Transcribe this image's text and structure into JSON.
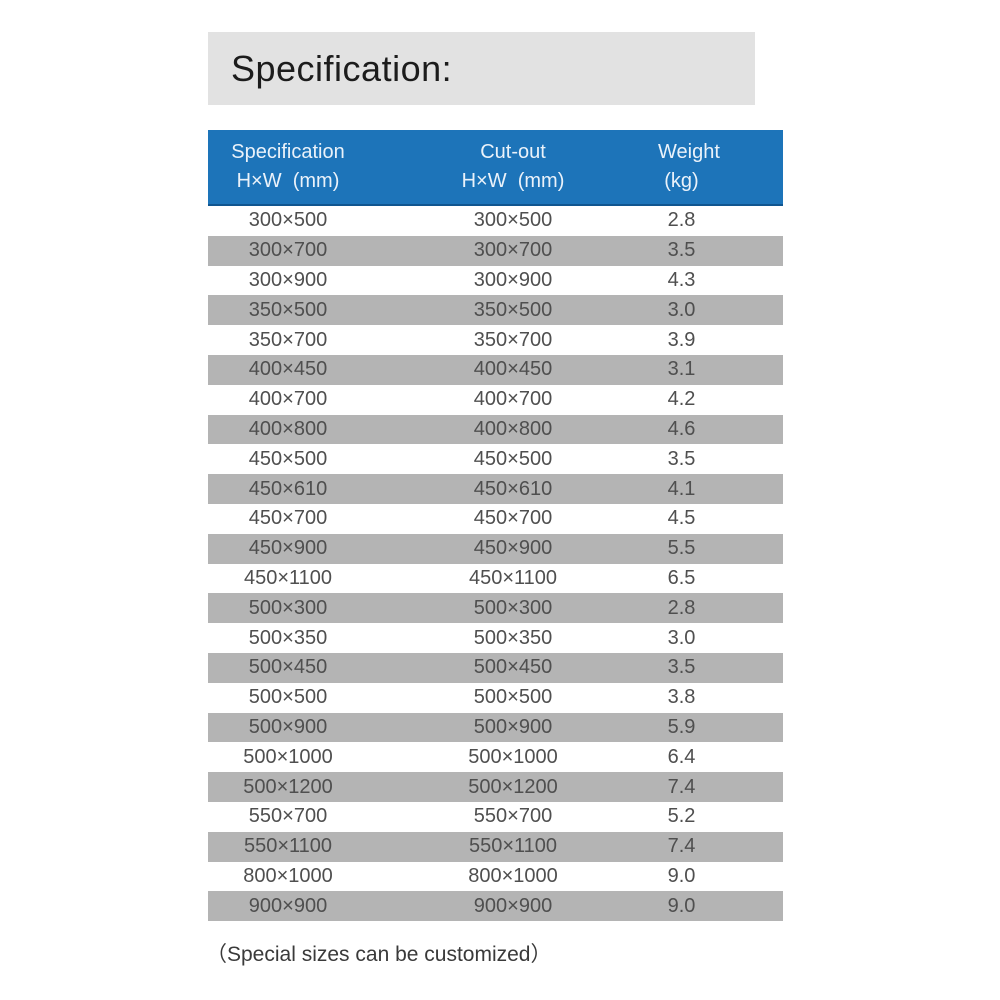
{
  "colors": {
    "title_bar_bg": "#e2e2e2",
    "header_bg": "#1d74b9",
    "header_border_bottom": "#10558f",
    "header_text": "#eaf2fa",
    "row_alt_bg": "#b4b4b4",
    "row_white_bg": "#ffffff",
    "row_text": "#4f4f4f",
    "title_text": "#1c1c1c"
  },
  "title_bar": {
    "text": "Specification:"
  },
  "table": {
    "header": {
      "columns": [
        {
          "line1": "Specification",
          "line2": "H×W  (mm)"
        },
        {
          "line1": "Cut-out",
          "line2": "H×W  (mm)"
        },
        {
          "line1": "Weight",
          "line2": "(kg)"
        }
      ]
    },
    "rows": [
      {
        "spec": "300×500",
        "cutout": "300×500",
        "weight": "2.8"
      },
      {
        "spec": "300×700",
        "cutout": "300×700",
        "weight": "3.5"
      },
      {
        "spec": "300×900",
        "cutout": "300×900",
        "weight": "4.3"
      },
      {
        "spec": "350×500",
        "cutout": "350×500",
        "weight": "3.0"
      },
      {
        "spec": "350×700",
        "cutout": "350×700",
        "weight": "3.9"
      },
      {
        "spec": "400×450",
        "cutout": "400×450",
        "weight": "3.1"
      },
      {
        "spec": "400×700",
        "cutout": "400×700",
        "weight": "4.2"
      },
      {
        "spec": "400×800",
        "cutout": "400×800",
        "weight": "4.6"
      },
      {
        "spec": "450×500",
        "cutout": "450×500",
        "weight": "3.5"
      },
      {
        "spec": "450×610",
        "cutout": "450×610",
        "weight": "4.1"
      },
      {
        "spec": "450×700",
        "cutout": "450×700",
        "weight": "4.5"
      },
      {
        "spec": "450×900",
        "cutout": "450×900",
        "weight": "5.5"
      },
      {
        "spec": "450×1100",
        "cutout": "450×1100",
        "weight": "6.5"
      },
      {
        "spec": "500×300",
        "cutout": "500×300",
        "weight": "2.8"
      },
      {
        "spec": "500×350",
        "cutout": "500×350",
        "weight": "3.0"
      },
      {
        "spec": "500×450",
        "cutout": "500×450",
        "weight": "3.5"
      },
      {
        "spec": "500×500",
        "cutout": "500×500",
        "weight": "3.8"
      },
      {
        "spec": "500×900",
        "cutout": "500×900",
        "weight": "5.9"
      },
      {
        "spec": "500×1000",
        "cutout": "500×1000",
        "weight": "6.4"
      },
      {
        "spec": "500×1200",
        "cutout": "500×1200",
        "weight": "7.4"
      },
      {
        "spec": "550×700",
        "cutout": "550×700",
        "weight": "5.2"
      },
      {
        "spec": "550×1100",
        "cutout": "550×1100",
        "weight": "7.4"
      },
      {
        "spec": "800×1000",
        "cutout": "800×1000",
        "weight": "9.0"
      },
      {
        "spec": "900×900",
        "cutout": "900×900",
        "weight": "9.0"
      }
    ]
  },
  "footer": {
    "text": "（Special sizes can be customized）"
  }
}
